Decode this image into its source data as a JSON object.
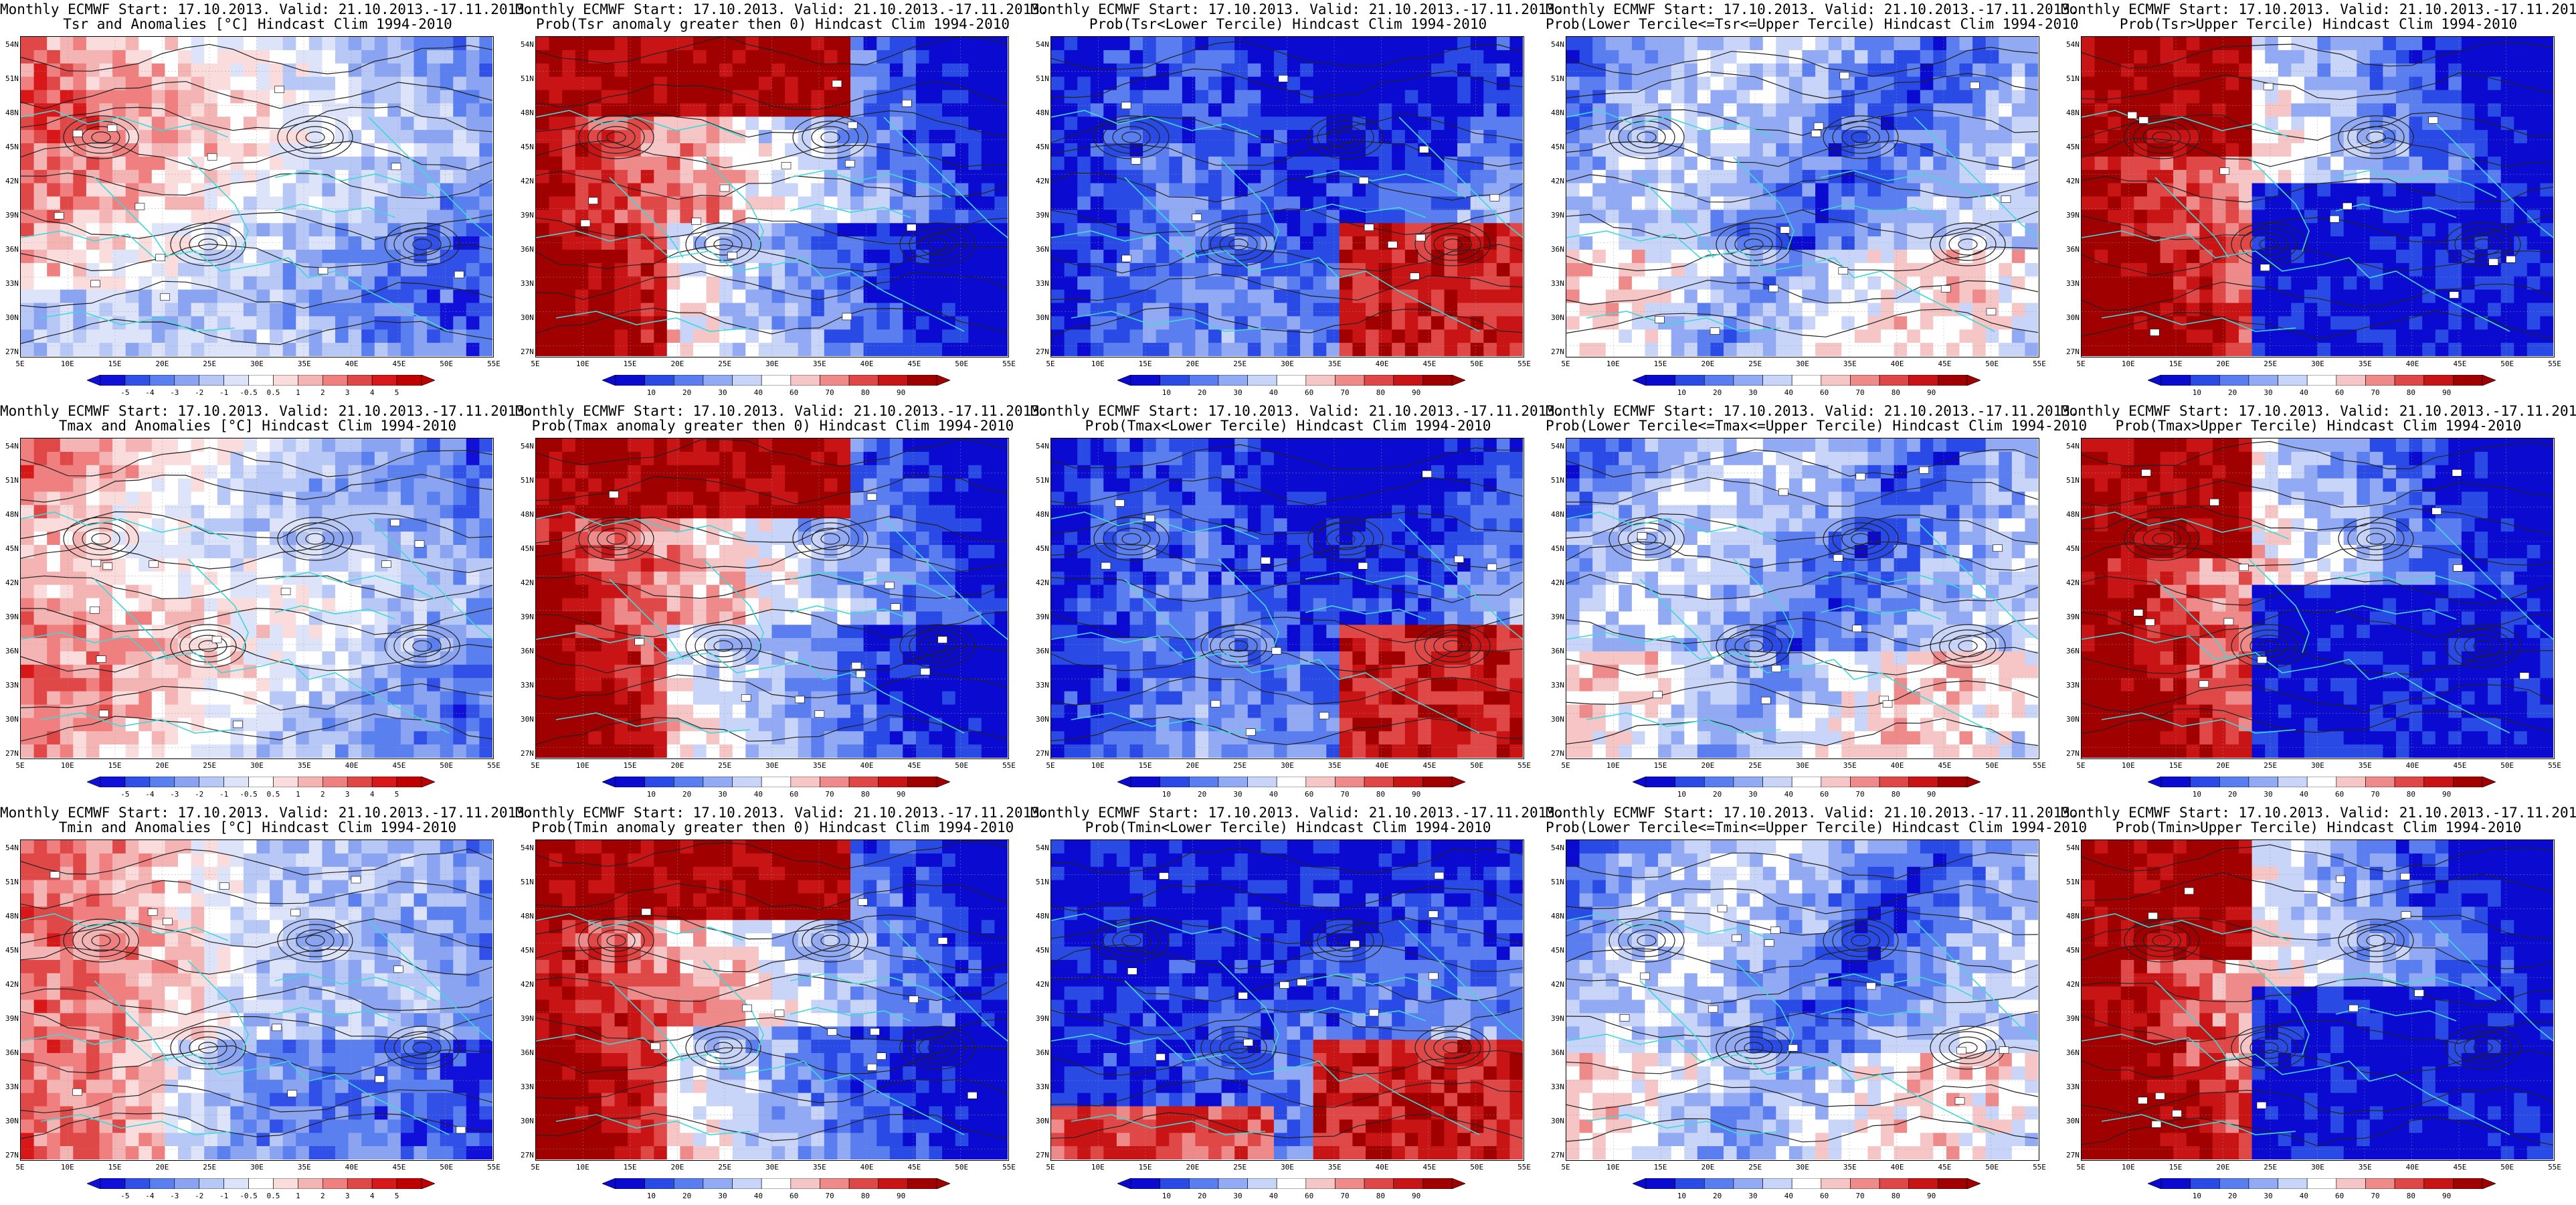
{
  "header_line": "Monthly ECMWF Start: 17.10.2013. Valid: 21.10.2013.-17.11.2013.",
  "lat_labels": [
    "54N",
    "51N",
    "48N",
    "45N",
    "42N",
    "39N",
    "36N",
    "33N",
    "30N",
    "27N"
  ],
  "lon_labels": [
    "5E",
    "10E",
    "15E",
    "20E",
    "25E",
    "30E",
    "35E",
    "40E",
    "45E",
    "50E",
    "55E"
  ],
  "colors": {
    "anom": [
      "#1010d8",
      "#3050e8",
      "#5a80f0",
      "#8aa4f2",
      "#b8c8f6",
      "#dde4fa",
      "#ffffff",
      "#fadcdc",
      "#f5b4b4",
      "#f08080",
      "#e04848",
      "#d81818",
      "#c00000"
    ],
    "prob": [
      "#0a0ad0",
      "#2a4ae6",
      "#5a7ef0",
      "#92aaf4",
      "#c8d4f8",
      "#ffffff",
      "#f6c6c6",
      "#ee8a8a",
      "#e04848",
      "#c81414",
      "#a00000"
    ],
    "coast": "#40d8d8",
    "contour": "#222222"
  },
  "legends": {
    "anom": [
      "-5",
      "-4",
      "-3",
      "-2",
      "-1",
      "-0.5",
      "0.5",
      "1",
      "2",
      "3",
      "4",
      "5"
    ],
    "prob": [
      "10",
      "20",
      "30",
      "40",
      "60",
      "70",
      "80",
      "90"
    ]
  },
  "rows": [
    {
      "panels": [
        {
          "title": "Tsr and Anomalies [°C] Hindcast Clim 1994-2010",
          "legend": "anom",
          "pattern": "anom_tsr"
        },
        {
          "title": "Prob(Tsr anomaly greater then 0) Hindcast Clim 1994-2010",
          "legend": "prob",
          "pattern": "warm_w"
        },
        {
          "title": "Prob(Tsr<Lower Tercile) Hindcast Clim 1994-2010",
          "legend": "prob",
          "pattern": "lower"
        },
        {
          "title": "Prob(Lower Tercile<=Tsr<=Upper Tercile) Hindcast Clim 1994-2010",
          "legend": "prob",
          "pattern": "middle"
        },
        {
          "title": "Prob(Tsr>Upper Tercile) Hindcast Clim 1994-2010",
          "legend": "prob",
          "pattern": "upper"
        }
      ]
    },
    {
      "panels": [
        {
          "title": "Tmax and Anomalies [°C] Hindcast Clim 1994-2010",
          "legend": "anom",
          "pattern": "anom_tmax"
        },
        {
          "title": "Prob(Tmax anomaly greater then 0) Hindcast Clim 1994-2010",
          "legend": "prob",
          "pattern": "warm_w"
        },
        {
          "title": "Prob(Tmax<Lower Tercile) Hindcast Clim 1994-2010",
          "legend": "prob",
          "pattern": "lower"
        },
        {
          "title": "Prob(Lower Tercile<=Tmax<=Upper Tercile) Hindcast Clim 1994-2010",
          "legend": "prob",
          "pattern": "middle"
        },
        {
          "title": "Prob(Tmax>Upper Tercile) Hindcast Clim 1994-2010",
          "legend": "prob",
          "pattern": "upper"
        }
      ]
    },
    {
      "panels": [
        {
          "title": "Tmin and Anomalies [°C] Hindcast Clim 1994-2010",
          "legend": "anom",
          "pattern": "anom_tmin"
        },
        {
          "title": "Prob(Tmin anomaly greater then 0) Hindcast Clim 1994-2010",
          "legend": "prob",
          "pattern": "warm_w"
        },
        {
          "title": "Prob(Tmin<Lower Tercile) Hindcast Clim 1994-2010",
          "legend": "prob",
          "pattern": "lower_tmin"
        },
        {
          "title": "Prob(Lower Tercile<=Tmin<=Upper Tercile) Hindcast Clim 1994-2010",
          "legend": "prob",
          "pattern": "middle"
        },
        {
          "title": "Prob(Tmin>Upper Tercile) Hindcast Clim 1994-2010",
          "legend": "prob",
          "pattern": "upper"
        }
      ]
    }
  ]
}
